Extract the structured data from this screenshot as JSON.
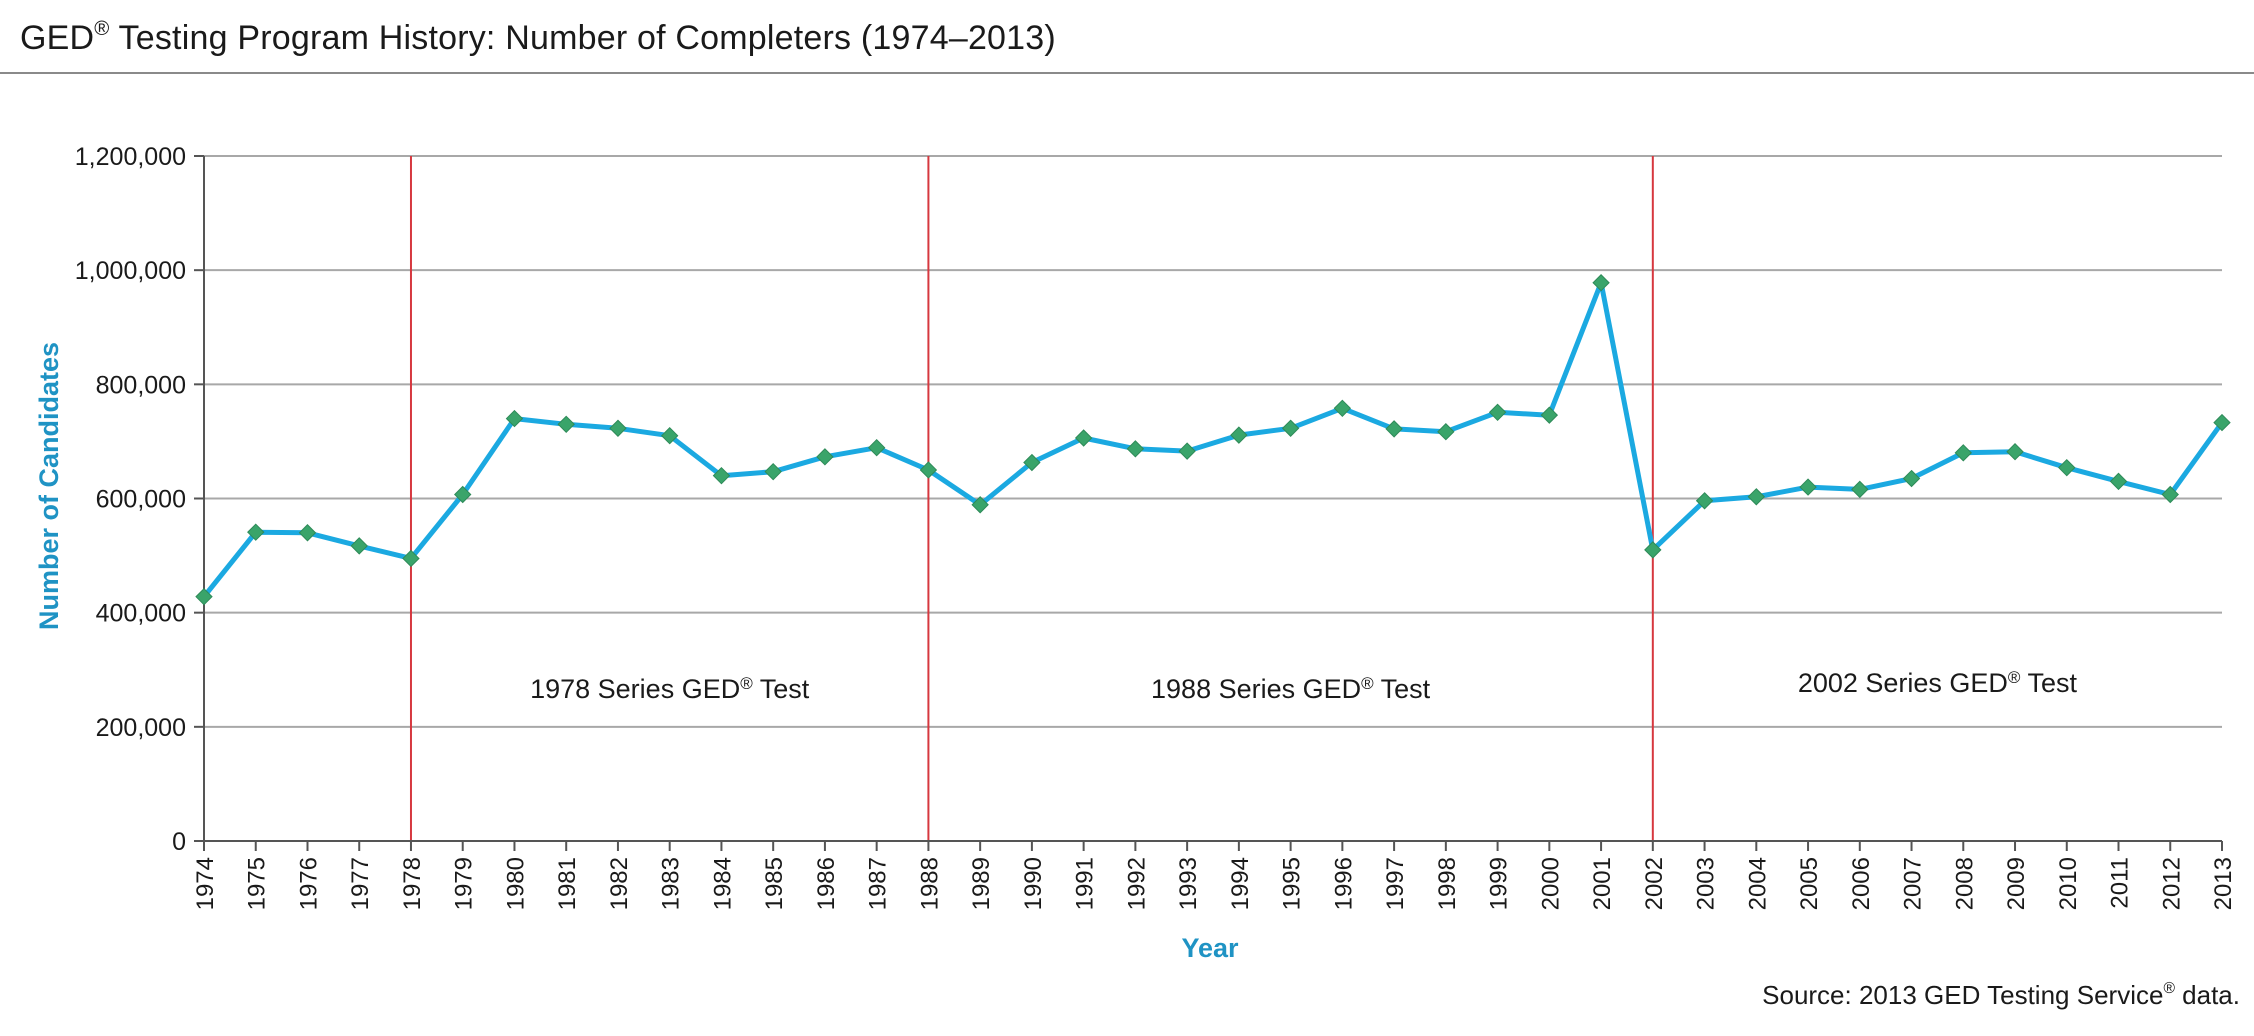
{
  "header": {
    "title": "GED",
    "title_reg": "®",
    "title_rest": " Testing Program History: Number of Completers (1974–2013)"
  },
  "footer": {
    "source_pre": "Source: 2013 GED Testing Service",
    "source_reg": "®",
    "source_post": " data."
  },
  "chart_data": {
    "type": "line",
    "title": "GED® Testing Program History: Number of Completers (1974–2013)",
    "xlabel": "Year",
    "ylabel": "Number of Candidates",
    "ylim": [
      0,
      1200000
    ],
    "yticks": [
      0,
      200000,
      400000,
      600000,
      800000,
      1000000,
      1200000
    ],
    "ytick_labels": [
      "0",
      "200,000",
      "400,000",
      "600,000",
      "800,000",
      "1,000,000",
      "1,200,000"
    ],
    "grid": "horizontal",
    "x": [
      "1974",
      "1975",
      "1976",
      "1977",
      "1978",
      "1979",
      "1980",
      "1981",
      "1982",
      "1983",
      "1984",
      "1985",
      "1986",
      "1987",
      "1988",
      "1989",
      "1990",
      "1991",
      "1992",
      "1993",
      "1994",
      "1995",
      "1996",
      "1997",
      "1998",
      "1999",
      "2000",
      "2001",
      "2002",
      "2003",
      "2004",
      "2005",
      "2006",
      "2007",
      "2008",
      "2009",
      "2010",
      "2011",
      "2012",
      "2013"
    ],
    "values": [
      428000,
      541000,
      540000,
      517000,
      495000,
      607000,
      740000,
      730000,
      723000,
      710000,
      640000,
      647000,
      673000,
      689000,
      650000,
      589000,
      663000,
      706000,
      687000,
      683000,
      711000,
      723000,
      758000,
      722000,
      717000,
      751000,
      746000,
      978000,
      510000,
      596000,
      603000,
      620000,
      616000,
      635000,
      680000,
      682000,
      654000,
      630000,
      607000,
      733000
    ],
    "line_color": "#1ba9e1",
    "marker_color": "#3aa46a",
    "divider_color": "#d6383f",
    "grid_color": "#a8a8a8",
    "label_color": "#1f93c4",
    "dividers": [
      "1978",
      "1988",
      "2002"
    ],
    "annotations": [
      {
        "text": "1978 Series GED",
        "reg": "®",
        "post": " Test",
        "year_from": "1978",
        "year_to": "1988"
      },
      {
        "text": "1988 Series GED",
        "reg": "®",
        "post": " Test",
        "year_from": "1988",
        "year_to": "2002"
      },
      {
        "text": "2002 Series GED",
        "reg": "®",
        "post": " Test",
        "year_from": "2002",
        "year_to": "2013"
      }
    ]
  }
}
